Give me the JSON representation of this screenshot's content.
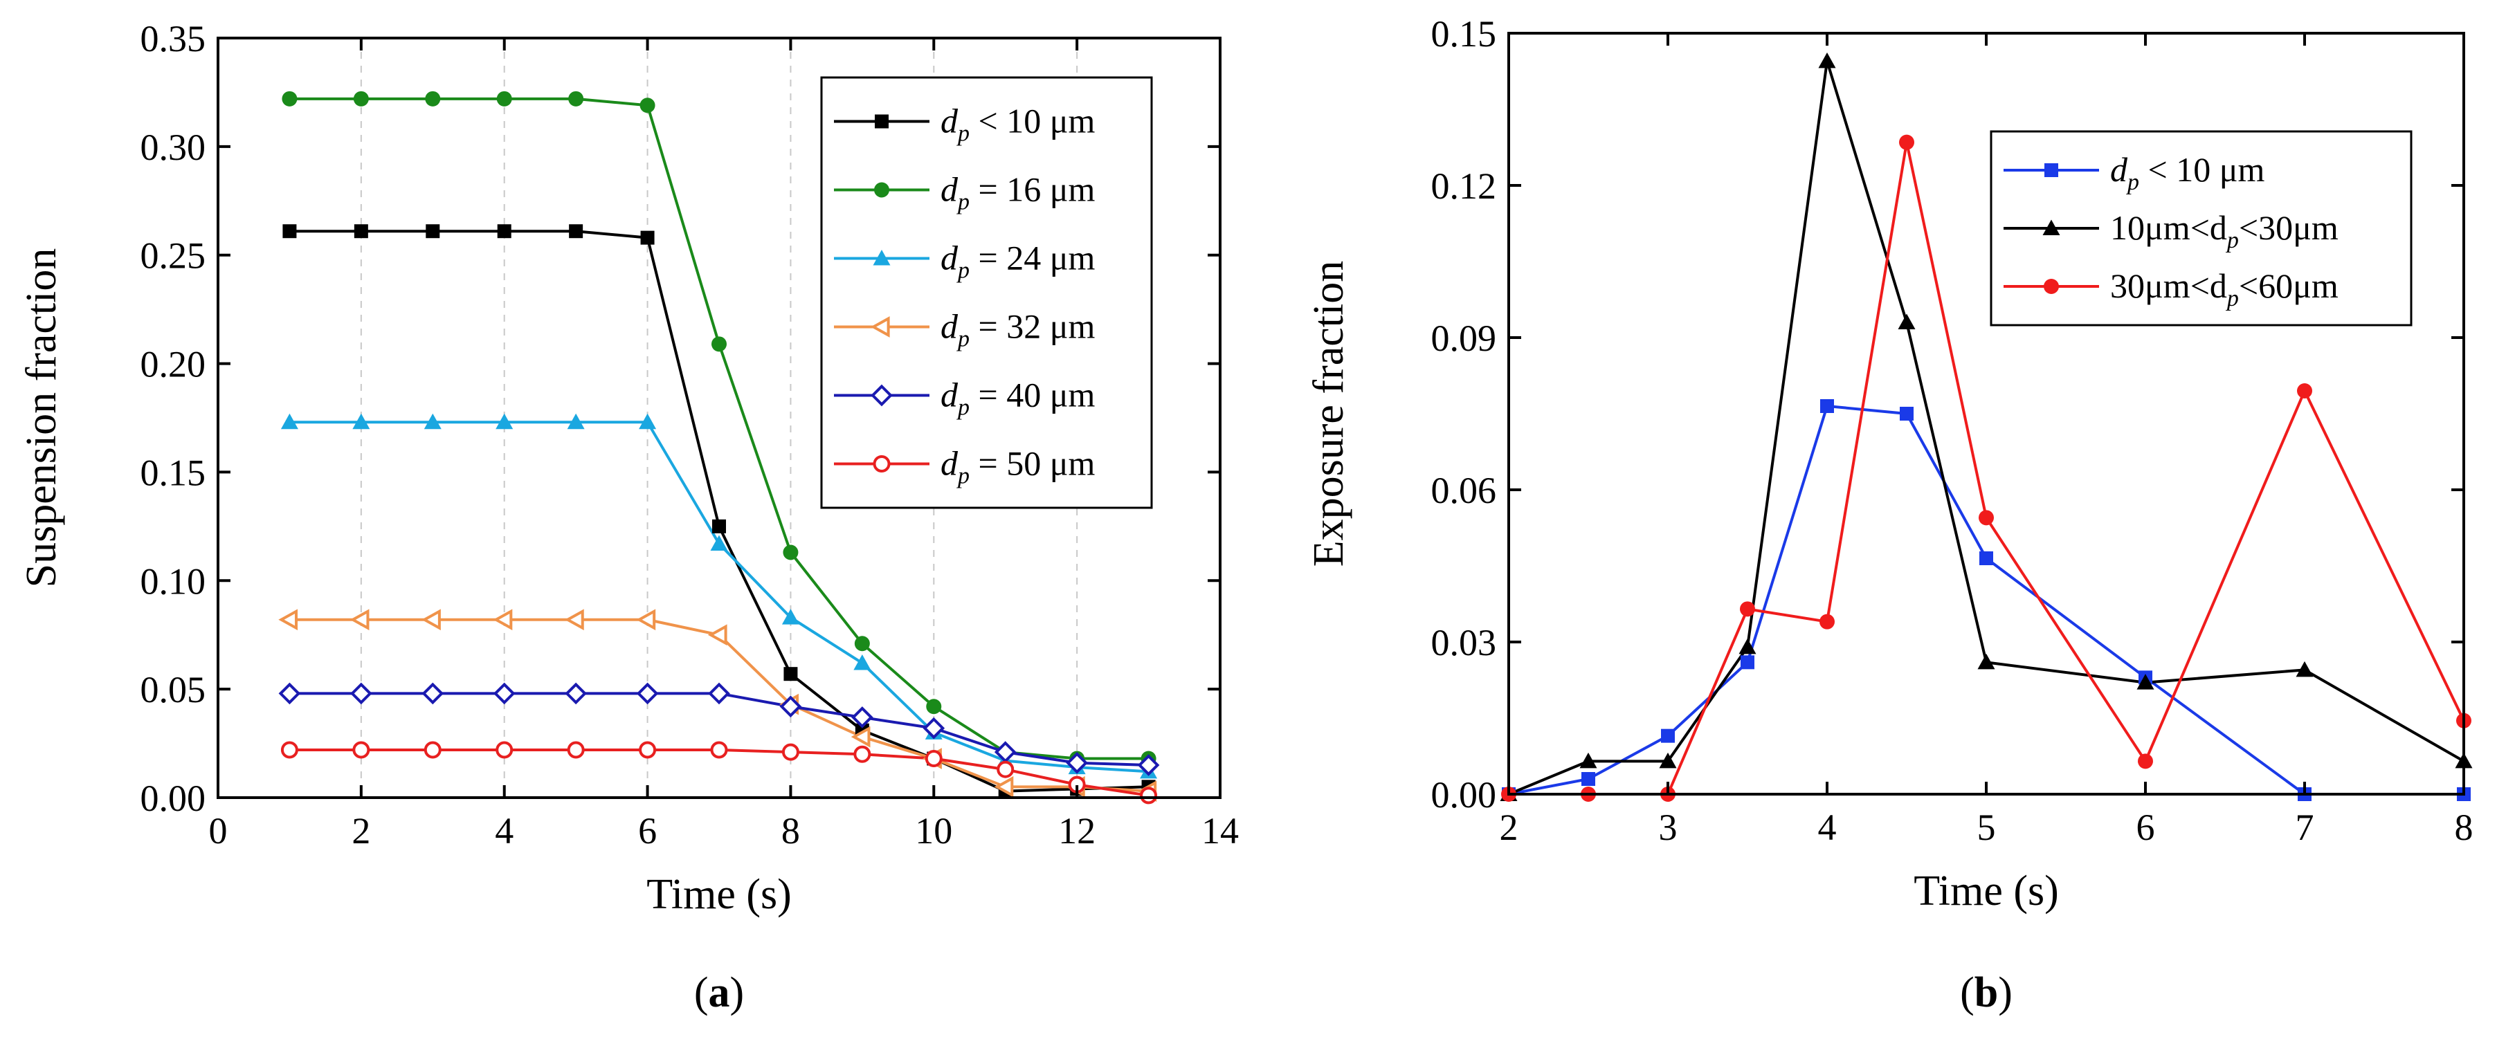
{
  "chart_data": [
    {
      "panel": "a",
      "type": "line",
      "xlabel": "Time (s)",
      "ylabel": "Suspension fraction",
      "xlim": [
        0,
        14
      ],
      "ylim": [
        0,
        0.35
      ],
      "xticks": [
        "0",
        "2",
        "4",
        "6",
        "8",
        "10",
        "12",
        "14"
      ],
      "yticks": [
        "0.00",
        "0.05",
        "0.10",
        "0.15",
        "0.20",
        "0.25",
        "0.30",
        "0.35"
      ],
      "grid": "vertical dashed",
      "legend_position": "top-right",
      "x": [
        1,
        2,
        3,
        4,
        5,
        6,
        7,
        8,
        9,
        10,
        11,
        12,
        13
      ],
      "series": [
        {
          "name": "d_p < 10 μm",
          "label_pre": "d",
          "label_sub": "p",
          "label_post": " < 10 μm",
          "color": "#000000",
          "marker": "square-filled",
          "values": [
            0.261,
            0.261,
            0.261,
            0.261,
            0.261,
            0.258,
            0.125,
            0.057,
            0.031,
            0.018,
            0.003,
            0.004,
            0.005
          ]
        },
        {
          "name": "d_p = 16 μm",
          "label_pre": "d",
          "label_sub": "p",
          "label_post": " = 16 μm",
          "color": "#1a8a1a",
          "marker": "circle-filled",
          "values": [
            0.322,
            0.322,
            0.322,
            0.322,
            0.322,
            0.319,
            0.209,
            0.113,
            0.071,
            0.042,
            0.021,
            0.018,
            0.018
          ]
        },
        {
          "name": "d_p = 24 μm",
          "label_pre": "d",
          "label_sub": "p",
          "label_post": " = 24 μm",
          "color": "#1aa7e0",
          "marker": "triangle-filled",
          "values": [
            0.173,
            0.173,
            0.173,
            0.173,
            0.173,
            0.173,
            0.117,
            0.083,
            0.062,
            0.03,
            0.017,
            0.014,
            0.012
          ]
        },
        {
          "name": "d_p = 32 μm",
          "label_pre": "d",
          "label_sub": "p",
          "label_post": " = 32 μm",
          "color": "#f0934a",
          "marker": "triangle-left-open",
          "values": [
            0.082,
            0.082,
            0.082,
            0.082,
            0.082,
            0.082,
            0.075,
            0.043,
            0.028,
            0.018,
            0.005,
            0.005,
            0.003
          ]
        },
        {
          "name": "d_p = 40 μm",
          "label_pre": "d",
          "label_sub": "p",
          "label_post": " = 40 μm",
          "color": "#1a1ab0",
          "marker": "diamond-open",
          "values": [
            0.048,
            0.048,
            0.048,
            0.048,
            0.048,
            0.048,
            0.048,
            0.042,
            0.037,
            0.032,
            0.021,
            0.016,
            0.015
          ]
        },
        {
          "name": "d_p = 50 μm",
          "label_pre": "d",
          "label_sub": "p",
          "label_post": " = 50 μm",
          "color": "#e82020",
          "marker": "circle-open",
          "values": [
            0.022,
            0.022,
            0.022,
            0.022,
            0.022,
            0.022,
            0.022,
            0.021,
            0.02,
            0.018,
            0.013,
            0.006,
            0.001
          ]
        }
      ],
      "caption": "(a)"
    },
    {
      "panel": "b",
      "type": "line",
      "xlabel": "Time (s)",
      "ylabel": "Exposure fraction",
      "xlim": [
        2,
        8
      ],
      "ylim": [
        0,
        0.15
      ],
      "xticks": [
        "2",
        "3",
        "4",
        "5",
        "6",
        "7",
        "8"
      ],
      "yticks": [
        "0.00",
        "0.03",
        "0.06",
        "0.09",
        "0.12",
        "0.15"
      ],
      "grid": "none",
      "legend_position": "top-right",
      "series": [
        {
          "name": "d_p < 10 μm",
          "label_pre": "d",
          "label_sub": "p",
          "label_post": " < 10 μm",
          "color": "#1a3ae8",
          "marker": "square-filled",
          "x": [
            2,
            2.5,
            3,
            3.5,
            4,
            4.5,
            5,
            6,
            7,
            8
          ],
          "values": [
            0.0,
            0.003,
            0.0115,
            0.026,
            0.0765,
            0.075,
            0.0465,
            0.023,
            0.0,
            0.0
          ]
        },
        {
          "name": "10μm<d_p<30μm",
          "label_pre": "10μm<d",
          "label_sub": "p",
          "label_post": "<30μm",
          "color": "#000000",
          "marker": "triangle-filled",
          "x": [
            2,
            2.5,
            3,
            3.5,
            4,
            4.5,
            5,
            6,
            7,
            8
          ],
          "values": [
            0.0,
            0.0065,
            0.0065,
            0.029,
            0.1445,
            0.093,
            0.026,
            0.022,
            0.0245,
            0.0065
          ]
        },
        {
          "name": "30μm<d_p<60μm",
          "label_pre": "30μm<d",
          "label_sub": "p",
          "label_post": "<60μm",
          "color": "#f01c1c",
          "marker": "circle-filled",
          "x": [
            2,
            2.5,
            3,
            3.5,
            4,
            4.5,
            5,
            6,
            7,
            8
          ],
          "values": [
            0.0,
            0.0,
            0.0,
            0.0365,
            0.034,
            0.1285,
            0.0545,
            0.0065,
            0.0795,
            0.0145
          ]
        }
      ],
      "caption": "(b)"
    }
  ]
}
